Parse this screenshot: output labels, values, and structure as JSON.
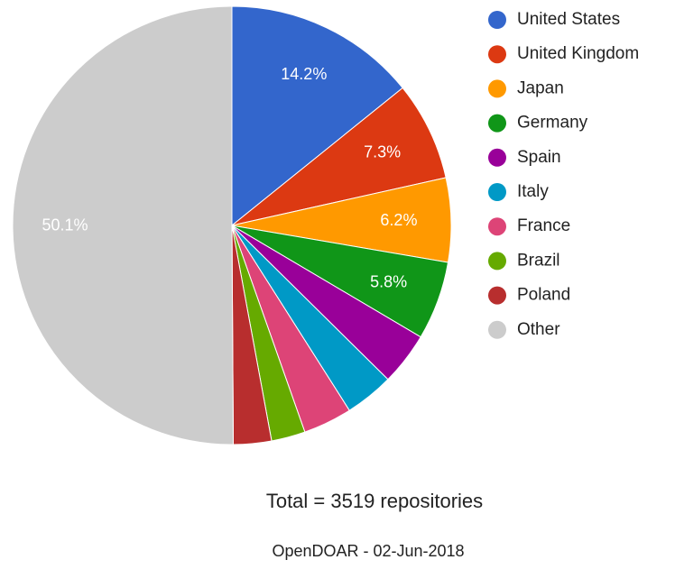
{
  "chart_data": {
    "type": "pie",
    "categories": [
      "United States",
      "United Kingdom",
      "Japan",
      "Germany",
      "Spain",
      "Italy",
      "France",
      "Brazil",
      "Poland",
      "Other"
    ],
    "values": [
      14.2,
      7.3,
      6.2,
      5.8,
      3.9,
      3.6,
      3.6,
      2.5,
      2.8,
      50.1
    ],
    "value_labels": [
      "14.2%",
      "7.3%",
      "6.2%",
      "5.8%",
      null,
      null,
      null,
      null,
      null,
      "50.1%"
    ],
    "colors": [
      "#3366cc",
      "#dc3912",
      "#ff9900",
      "#109618",
      "#990099",
      "#0099c6",
      "#dd4477",
      "#66aa00",
      "#b82e2e",
      "#cccccc"
    ],
    "legend": "right",
    "annotations": [
      "Total = 3519 repositories",
      "OpenDOAR - 02-Jun-2018"
    ]
  }
}
